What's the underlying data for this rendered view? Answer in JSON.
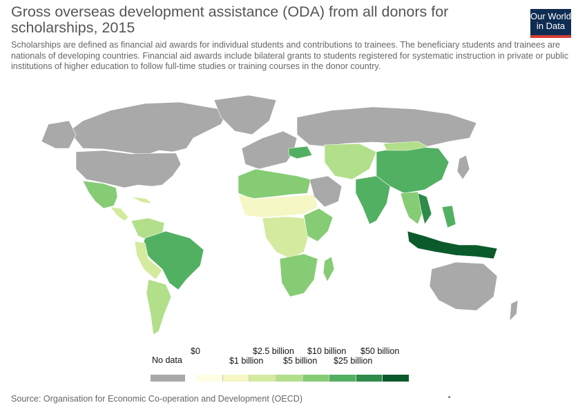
{
  "title": "Gross overseas development assistance (ODA) from all donors for scholarships, 2015",
  "subtitle": "Scholarships are defined as financial aid awards for individual students and contributions to trainees. The beneficiary students and trainees are nationals of developing countries. Financial aid awards include bilateral grants to students registered for systematic instruction in private or public institutions of higher education to follow full-time studies or training courses in the donor country.",
  "logo": {
    "line1": "Our World",
    "line2": "in Data"
  },
  "legend": {
    "no_data_label": "No data",
    "no_data_color": "#a9a9a9",
    "bins": [
      {
        "label": "$0",
        "color": "#fffde3"
      },
      {
        "label": "$1 billion",
        "color": "#f5f7c4"
      },
      {
        "label": "$2.5 billion",
        "color": "#d4ea9f"
      },
      {
        "label": "$5 billion",
        "color": "#b2df8a"
      },
      {
        "label": "$10 billion",
        "color": "#85cc74"
      },
      {
        "label": "$25 billion",
        "color": "#52b062"
      },
      {
        "label": "$50 billion",
        "color": "#2e8b4a"
      },
      {
        "label": "",
        "color": "#0b5a2c"
      }
    ]
  },
  "source": "Source: Organisation for Economic Co-operation and Development (OECD)"
}
